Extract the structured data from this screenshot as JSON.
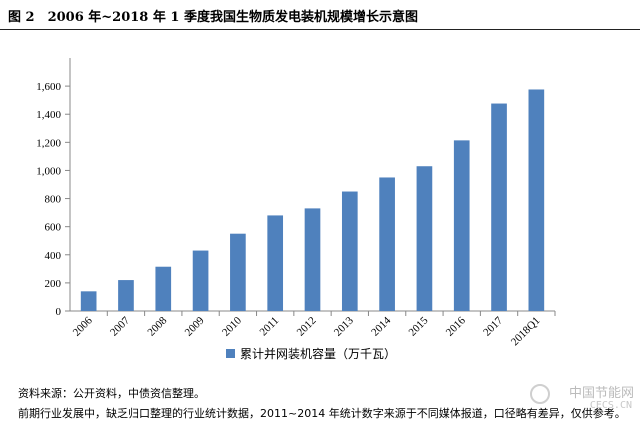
{
  "header": {
    "title": "图 2　2006 年~2018 年 1 季度我国生物质发电装机规模增长示意图"
  },
  "chart_data": {
    "type": "bar",
    "categories": [
      "2006",
      "2007",
      "2008",
      "2009",
      "2010",
      "2011",
      "2012",
      "2013",
      "2014",
      "2015",
      "2016",
      "2017",
      "2018Q1"
    ],
    "series": [
      {
        "name": "累计并网装机容量（万千瓦）",
        "values": [
          140,
          220,
          315,
          430,
          550,
          680,
          730,
          850,
          950,
          1030,
          1214,
          1476,
          1576
        ]
      }
    ],
    "y_ticks": [
      "0",
      "200",
      "400",
      "600",
      "800",
      "1,000",
      "1,200",
      "1,400",
      "1,600"
    ],
    "ylim": [
      0,
      1800
    ],
    "bar_color": "#4f81bd",
    "legend_position": "bottom",
    "grid": false
  },
  "footer": {
    "source": "资料来源：公开资料，中债资信整理。",
    "note": "前期行业发展中，缺乏归口整理的行业统计数据，2011~2014 年统计数字来源于不同媒体报道，口径略有差异，仅供参考。"
  },
  "watermark": {
    "text": "中国节能网",
    "sub": "CECS.CN"
  }
}
